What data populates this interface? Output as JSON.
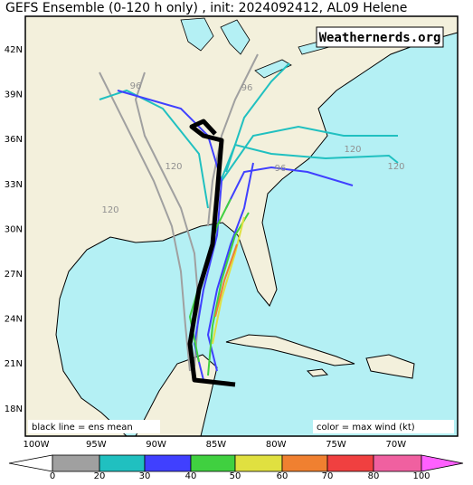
{
  "title": "GEFS Ensemble (0-120 h only) , init: 2024092412, AL09 Helene",
  "watermark": "Weathernerds.org",
  "lat_labels": [
    "42N",
    "39N",
    "36N",
    "33N",
    "30N",
    "27N",
    "24N",
    "21N",
    "18N"
  ],
  "lon_labels": [
    "100W",
    "95W",
    "90W",
    "85W",
    "80W",
    "75W",
    "70W"
  ],
  "notes": {
    "left": "black line = ens mean",
    "right": "color = max wind (kt)"
  },
  "colorbar": {
    "labels": [
      0,
      20,
      30,
      40,
      50,
      60,
      70,
      80,
      100
    ]
  },
  "track_labels": [
    120,
    120,
    120,
    120,
    96,
    96,
    96
  ]
}
